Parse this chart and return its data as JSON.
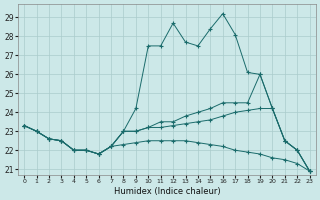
{
  "xlabel": "Humidex (Indice chaleur)",
  "xlim": [
    -0.5,
    23.5
  ],
  "ylim": [
    20.7,
    29.7
  ],
  "yticks": [
    21,
    22,
    23,
    24,
    25,
    26,
    27,
    28,
    29
  ],
  "xticks": [
    0,
    1,
    2,
    3,
    4,
    5,
    6,
    7,
    8,
    9,
    10,
    11,
    12,
    13,
    14,
    15,
    16,
    17,
    18,
    19,
    20,
    21,
    22,
    23
  ],
  "bg_color": "#cce8e8",
  "grid_color": "#aacccc",
  "line_color": "#1a6b6b",
  "x": [
    0,
    1,
    2,
    3,
    4,
    5,
    6,
    7,
    8,
    9,
    10,
    11,
    12,
    13,
    14,
    15,
    16,
    17,
    18,
    19,
    20,
    21,
    22,
    23
  ],
  "lines": [
    [
      23.3,
      23.0,
      22.6,
      22.5,
      22.0,
      22.0,
      21.8,
      22.2,
      23.0,
      24.2,
      27.5,
      27.5,
      28.7,
      27.7,
      27.5,
      28.4,
      29.2,
      28.1,
      26.1,
      26.0,
      24.2,
      22.5,
      22.0,
      20.9
    ],
    [
      23.3,
      23.0,
      22.6,
      22.5,
      22.0,
      22.0,
      21.8,
      22.2,
      23.0,
      23.0,
      23.2,
      23.5,
      23.5,
      23.8,
      24.0,
      24.2,
      24.5,
      24.5,
      24.5,
      26.0,
      24.2,
      22.5,
      22.0,
      20.9
    ],
    [
      23.3,
      23.0,
      22.6,
      22.5,
      22.0,
      22.0,
      21.8,
      22.2,
      23.0,
      23.0,
      23.2,
      23.2,
      23.3,
      23.4,
      23.5,
      23.6,
      23.8,
      24.0,
      24.1,
      24.2,
      24.2,
      22.5,
      22.0,
      20.9
    ],
    [
      23.3,
      23.0,
      22.6,
      22.5,
      22.0,
      22.0,
      21.8,
      22.2,
      22.3,
      22.4,
      22.5,
      22.5,
      22.5,
      22.5,
      22.4,
      22.3,
      22.2,
      22.0,
      21.9,
      21.8,
      21.6,
      21.5,
      21.3,
      20.9
    ]
  ]
}
